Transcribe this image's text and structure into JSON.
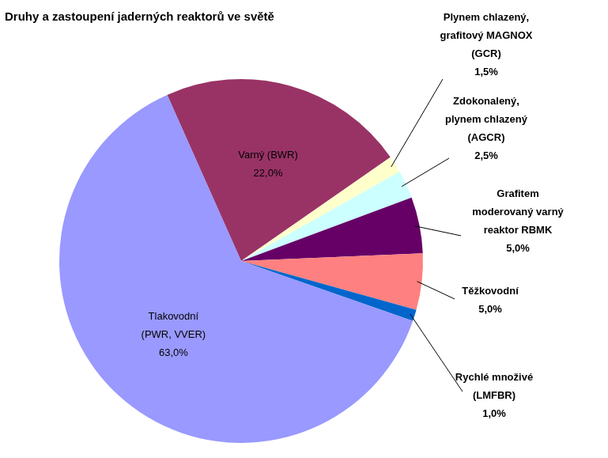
{
  "chart_data": {
    "type": "pie",
    "title": "Druhy a zastoupení jaderných reaktorů ve světě",
    "categories": [
      [
        "Varný (BWR)"
      ],
      [
        "Plynem chlazený,",
        "grafitový MAGNOX",
        "(GCR)"
      ],
      [
        "Zdokonalený,",
        "plynem chlazený",
        "(AGCR)"
      ],
      [
        "Grafitem",
        "moderovaný varný",
        "reaktor RBMK"
      ],
      [
        "Těžkovodní"
      ],
      [
        "Rychlé množivé",
        "(LMFBR)"
      ],
      [
        "Tlakovodní",
        "(PWR, VVER)"
      ]
    ],
    "values": [
      22,
      1.5,
      2.5,
      5,
      5,
      1,
      63
    ],
    "value_labels": [
      "22,0%",
      "1,5%",
      "2,5%",
      "5,0%",
      "5,0%",
      "1,0%",
      "63,0%"
    ],
    "colors": [
      "#993366",
      "#ffffcc",
      "#ccffff",
      "#660066",
      "#ff8080",
      "#0066cc",
      "#9999ff"
    ],
    "data_labels": true
  }
}
